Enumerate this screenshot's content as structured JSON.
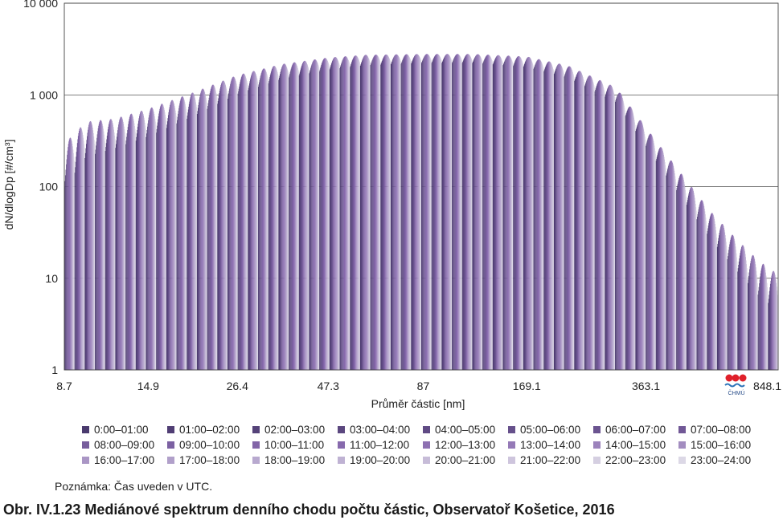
{
  "chart_data": {
    "type": "bar",
    "ylabel": "dN/dlogDp [#/cm³]",
    "xlabel": "Průměr částic [nm]",
    "yscale": "log",
    "ylim": [
      1,
      10000
    ],
    "ytick_labels": [
      "1",
      "10",
      "100",
      "1 000",
      "10 000"
    ],
    "ytick_values": [
      1,
      10,
      100,
      1000,
      10000
    ],
    "xlim": [
      8.7,
      848.1
    ],
    "xscale": "log",
    "xtick_labels": [
      "8.7",
      "14.9",
      "26.4",
      "47.3",
      "87",
      "169.1",
      "363.1",
      "848.1"
    ],
    "xtick_values": [
      8.7,
      14.9,
      26.4,
      47.3,
      87,
      169.1,
      363.1,
      848.1
    ],
    "grid": "horizontal",
    "hours": [
      "0:00–01:00",
      "01:00–02:00",
      "02:00–03:00",
      "03:00–04:00",
      "04:00–05:00",
      "05:00–06:00",
      "06:00–07:00",
      "07:00–08:00",
      "08:00–09:00",
      "09:00–10:00",
      "10:00–11:00",
      "11:00–12:00",
      "12:00–13:00",
      "13:00–14:00",
      "14:00–15:00",
      "15:00–16:00",
      "16:00–17:00",
      "17:00–18:00",
      "18:00–19:00",
      "19:00–20:00",
      "20:00–21:00",
      "21:00–22:00",
      "22:00–23:00",
      "23:00–24:00"
    ],
    "envelope_diameters_nm": [
      8.7,
      10,
      12,
      14.9,
      20,
      26.4,
      35,
      47.3,
      60,
      87,
      120,
      169.1,
      220,
      300,
      363.1,
      450,
      550,
      650,
      750,
      848.1
    ],
    "envelope_median": [
      170,
      330,
      380,
      500,
      800,
      1300,
      1800,
      2200,
      2400,
      2500,
      2500,
      2300,
      1800,
      1000,
      350,
      110,
      38,
      18,
      10,
      7
    ],
    "envelope_diurnal_amplitude": [
      3.0,
      2.4,
      2.1,
      2.0,
      1.8,
      1.6,
      1.45,
      1.35,
      1.3,
      1.25,
      1.25,
      1.3,
      1.35,
      1.45,
      1.6,
      1.8,
      2.0,
      2.2,
      2.4,
      2.5
    ],
    "colors": {
      "hour_gradient_start": "#4a3a6e",
      "hour_gradient_mid": "#8a6cb0",
      "hour_gradient_end": "#dcd8e6"
    }
  },
  "legend": [
    [
      "0:00–01:00",
      "01:00–02:00",
      "02:00–03:00",
      "03:00–04:00",
      "04:00–05:00",
      "05:00–06:00",
      "06:00–07:00",
      "07:00–08:00"
    ],
    [
      "08:00–09:00",
      "09:00–10:00",
      "10:00–11:00",
      "11:00–12:00",
      "12:00–13:00",
      "13:00–14:00",
      "14:00–15:00",
      "15:00–16:00"
    ],
    [
      "16:00–17:00",
      "17:00–18:00",
      "18:00–19:00",
      "19:00–20:00",
      "20:00–21:00",
      "21:00–22:00",
      "22:00–23:00",
      "23:00–24:00"
    ]
  ],
  "logo_text": "ČHMÚ",
  "note": "Poznámka: Čas uveden v UTC.",
  "caption": "Obr. IV.1.23  Mediánové spektrum denního chodu počtu částic, Observatoř Košetice, 2016"
}
